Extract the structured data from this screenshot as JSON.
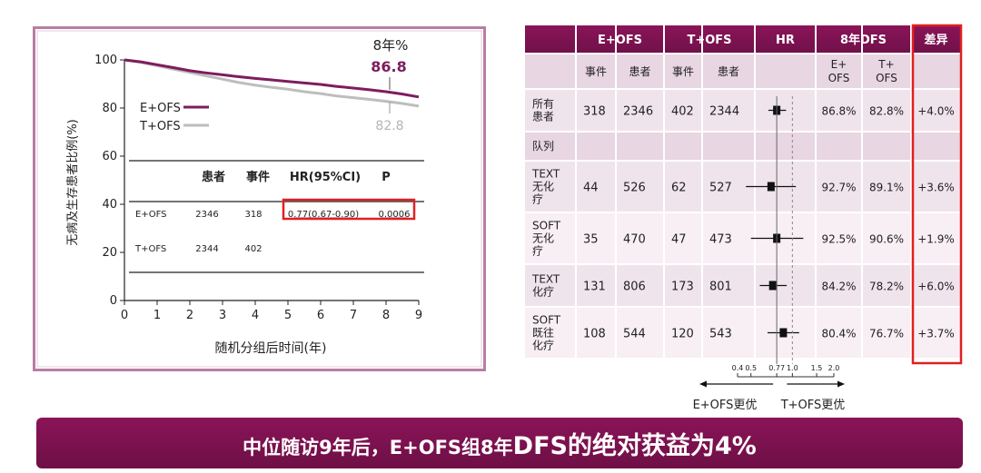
{
  "banner": {
    "text_pre": "中位随访9年后，E+OFS组8年",
    "text_big": "DFS的绝对获益为4%"
  },
  "chart_data": [
    {
      "type": "line",
      "ylabel": "无病及生存患者比例(%)",
      "xlabel": "随机分组后时间(年)",
      "xlim": [
        0,
        9
      ],
      "ylim": [
        0,
        100
      ],
      "x_ticks": [
        0,
        1,
        2,
        3,
        4,
        5,
        6,
        7,
        8,
        9
      ],
      "y_ticks": [
        0,
        20,
        40,
        60,
        80,
        100
      ],
      "annotation_header": "8年%",
      "series": [
        {
          "name": "E+OFS",
          "color": "#7d1d5e",
          "label_8yr": "86.8",
          "x": [
            0,
            0.5,
            1,
            1.5,
            2,
            2.5,
            3,
            3.5,
            4,
            4.5,
            5,
            5.5,
            6,
            6.5,
            7,
            7.5,
            8,
            8.5,
            9
          ],
          "y": [
            100,
            99.2,
            98,
            96.8,
            95.5,
            94.6,
            93.8,
            93,
            92.3,
            91.7,
            91,
            90.4,
            89.8,
            89,
            88.3,
            87.6,
            86.8,
            85.8,
            84.6
          ]
        },
        {
          "name": "T+OFS",
          "color": "#bdbdbd",
          "label_8yr": "82.8",
          "x": [
            0,
            0.5,
            1,
            1.5,
            2,
            2.5,
            3,
            3.5,
            4,
            4.5,
            5,
            5.5,
            6,
            6.5,
            7,
            7.5,
            8,
            8.5,
            9
          ],
          "y": [
            100,
            99,
            97.6,
            96.2,
            94.8,
            93.4,
            92,
            90.6,
            89.5,
            88.6,
            87.8,
            86.8,
            86,
            85,
            84.3,
            83.6,
            82.8,
            81.9,
            80.8
          ]
        }
      ],
      "table": {
        "headers": [
          "患者",
          "事件",
          "HR(95%CI)",
          "P"
        ],
        "rows": [
          {
            "label": "E+OFS",
            "patients": "2346",
            "events": "318",
            "hr": "0.77(0.67-0.90)",
            "p": "0.0006"
          },
          {
            "label": "T+OFS",
            "patients": "2344",
            "events": "402",
            "hr": "",
            "p": ""
          }
        ]
      }
    },
    {
      "type": "table",
      "headers": {
        "group1": "E+OFS",
        "group2": "T+OFS",
        "hr": "HR",
        "dfs": "8年DFS",
        "diff": "差异",
        "sub_events": "事件",
        "sub_patients": "患者",
        "sub_e_ofs": "E+ OFS",
        "sub_t_ofs": "T+ OFS"
      },
      "rows": [
        {
          "label": "所有患者",
          "lines": [
            "所有",
            "患者"
          ],
          "e_events": "318",
          "e_patients": "2346",
          "t_events": "402",
          "t_patients": "2344",
          "hr": 0.77,
          "lo": 0.67,
          "hi": 0.9,
          "dfs_e": "86.8%",
          "dfs_t": "82.8%",
          "diff": "+4.0%"
        },
        {
          "label": "队列",
          "lines": [
            "队列"
          ],
          "section": true
        },
        {
          "label": "TEXT无化疗",
          "lines": [
            "TEXT",
            "无化",
            "疗"
          ],
          "e_events": "44",
          "e_patients": "526",
          "t_events": "62",
          "t_patients": "527",
          "hr": 0.7,
          "lo": 0.46,
          "hi": 1.06,
          "dfs_e": "92.7%",
          "dfs_t": "89.1%",
          "diff": "+3.6%"
        },
        {
          "label": "SOFT无化疗",
          "lines": [
            "SOFT",
            "无化",
            "疗"
          ],
          "e_events": "35",
          "e_patients": "470",
          "t_events": "47",
          "t_patients": "473",
          "hr": 0.77,
          "lo": 0.5,
          "hi": 1.2,
          "dfs_e": "92.5%",
          "dfs_t": "90.6%",
          "diff": "+1.9%"
        },
        {
          "label": "TEXT化疗",
          "lines": [
            "TEXT",
            "化疗"
          ],
          "e_events": "131",
          "e_patients": "806",
          "t_events": "173",
          "t_patients": "801",
          "hr": 0.72,
          "lo": 0.58,
          "hi": 0.91,
          "dfs_e": "84.2%",
          "dfs_t": "78.2%",
          "diff": "+6.0%"
        },
        {
          "label": "SOFT既往化疗",
          "lines": [
            "SOFT",
            "既往",
            "化疗"
          ],
          "e_events": "108",
          "e_patients": "544",
          "t_events": "120",
          "t_patients": "543",
          "hr": 0.86,
          "lo": 0.66,
          "hi": 1.12,
          "dfs_e": "80.4%",
          "dfs_t": "76.7%",
          "diff": "+3.7%"
        }
      ],
      "x_axis": {
        "scale": "log",
        "ticks": [
          0.4,
          0.5,
          0.77,
          1.0,
          1.5,
          2.0
        ],
        "tick_labels": [
          "0.4",
          "0.5",
          "0.77",
          "1.0",
          "1.5",
          "2.0"
        ],
        "reference": 1.0,
        "estimate_line": 0.77,
        "left_label": "E+OFS更优",
        "right_label": "T+OFS更优"
      }
    }
  ]
}
